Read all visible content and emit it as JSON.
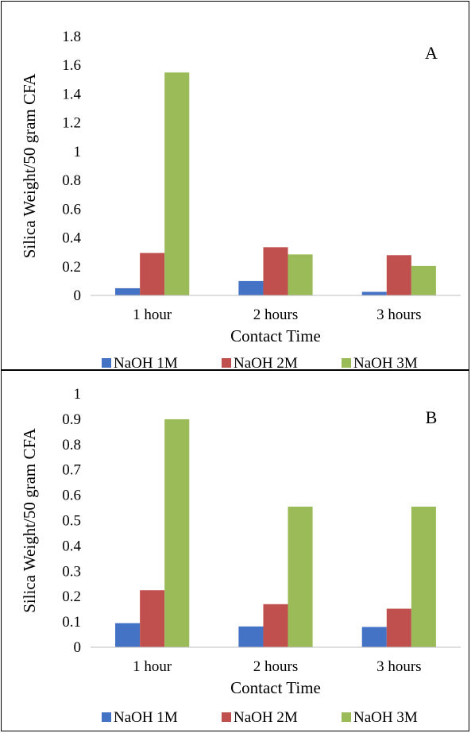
{
  "chart_data": [
    {
      "type": "bar",
      "panel_label": "A",
      "categories": [
        "1 hour",
        "2 hours",
        "3 hours"
      ],
      "series": [
        {
          "name": "NaOH 1M",
          "values": [
            0.05,
            0.1,
            0.025
          ]
        },
        {
          "name": "NaOH 2M",
          "values": [
            0.295,
            0.335,
            0.28
          ]
        },
        {
          "name": "NaOH 3M",
          "values": [
            1.55,
            0.285,
            0.205
          ]
        }
      ],
      "xlabel": "Contact Time",
      "ylabel": "Silica Weight/50 gram CFA",
      "ylim": [
        0,
        1.8
      ],
      "yticks": [
        "0",
        "0.2",
        "0.4",
        "0.6",
        "0.8",
        "1",
        "1.2",
        "1.4",
        "1.6",
        "1.8"
      ],
      "grid": false,
      "legend_position": "bottom"
    },
    {
      "type": "bar",
      "panel_label": "B",
      "categories": [
        "1 hour",
        "2 hours",
        "3 hours"
      ],
      "series": [
        {
          "name": "NaOH 1M",
          "values": [
            0.095,
            0.082,
            0.08
          ]
        },
        {
          "name": "NaOH 2M",
          "values": [
            0.225,
            0.17,
            0.152
          ]
        },
        {
          "name": "NaOH 3M",
          "values": [
            0.9,
            0.555,
            0.555
          ]
        }
      ],
      "xlabel": "Contact Time",
      "ylabel": "Silica Weight/50 gram CFA",
      "ylim": [
        0,
        1
      ],
      "yticks": [
        "0",
        "0.1",
        "0.2",
        "0.3",
        "0.4",
        "0.5",
        "0.6",
        "0.7",
        "0.8",
        "0.9",
        "1"
      ],
      "grid": false,
      "legend_position": "bottom"
    }
  ],
  "colors": {
    "NaOH 1M": "#4472c4",
    "NaOH 2M": "#c0504d",
    "NaOH 3M": "#9bbb59"
  }
}
